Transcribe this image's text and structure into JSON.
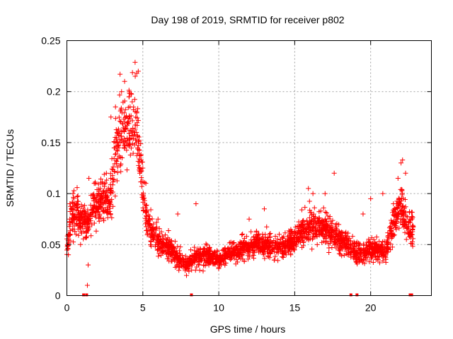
{
  "chart_data": {
    "type": "scatter",
    "title": "Day 198 of 2019, SRMTID for receiver p802",
    "xlabel": "GPS time / hours",
    "ylabel": "SRMTID / TECUs",
    "xlim": [
      0,
      24
    ],
    "ylim": [
      0,
      0.25
    ],
    "xticks": [
      0,
      5,
      10,
      15,
      20
    ],
    "xtick_labels": [
      "0",
      "5",
      "10",
      "15",
      "20"
    ],
    "yticks": [
      0,
      0.05,
      0.1,
      0.15,
      0.2,
      0.25
    ],
    "ytick_labels": [
      "0",
      "0.05",
      "0.1",
      "0.15",
      "0.2",
      "0.25"
    ],
    "grid": true,
    "series_color": "#ff0000",
    "series": [
      {
        "name": "SRMTID",
        "marker": "plus",
        "trend": [
          [
            0.0,
            0.045
          ],
          [
            0.3,
            0.075
          ],
          [
            0.7,
            0.08
          ],
          [
            1.0,
            0.075
          ],
          [
            1.3,
            0.07
          ],
          [
            1.7,
            0.085
          ],
          [
            2.0,
            0.09
          ],
          [
            2.5,
            0.095
          ],
          [
            2.8,
            0.09
          ],
          [
            3.0,
            0.115
          ],
          [
            3.3,
            0.14
          ],
          [
            3.6,
            0.16
          ],
          [
            4.0,
            0.165
          ],
          [
            4.4,
            0.17
          ],
          [
            4.7,
            0.155
          ],
          [
            5.0,
            0.1
          ],
          [
            5.3,
            0.07
          ],
          [
            5.7,
            0.06
          ],
          [
            6.2,
            0.05
          ],
          [
            6.8,
            0.045
          ],
          [
            7.3,
            0.035
          ],
          [
            7.8,
            0.03
          ],
          [
            8.3,
            0.035
          ],
          [
            9.0,
            0.04
          ],
          [
            9.5,
            0.038
          ],
          [
            10.0,
            0.035
          ],
          [
            10.5,
            0.04
          ],
          [
            11.0,
            0.042
          ],
          [
            11.5,
            0.045
          ],
          [
            12.0,
            0.048
          ],
          [
            12.5,
            0.052
          ],
          [
            13.0,
            0.05
          ],
          [
            13.5,
            0.05
          ],
          [
            14.0,
            0.048
          ],
          [
            14.5,
            0.05
          ],
          [
            15.0,
            0.055
          ],
          [
            15.5,
            0.065
          ],
          [
            16.0,
            0.07
          ],
          [
            16.5,
            0.068
          ],
          [
            17.0,
            0.065
          ],
          [
            17.5,
            0.06
          ],
          [
            18.0,
            0.055
          ],
          [
            18.5,
            0.05
          ],
          [
            19.0,
            0.04
          ],
          [
            19.5,
            0.042
          ],
          [
            20.0,
            0.045
          ],
          [
            20.5,
            0.045
          ],
          [
            21.0,
            0.042
          ],
          [
            21.3,
            0.06
          ],
          [
            21.6,
            0.075
          ],
          [
            22.0,
            0.09
          ],
          [
            22.3,
            0.075
          ],
          [
            22.6,
            0.065
          ],
          [
            22.8,
            0.07
          ]
        ],
        "points": [
          [
            0.1,
            0.04
          ],
          [
            0.2,
            0.09
          ],
          [
            0.4,
            0.1
          ],
          [
            0.6,
            0.06
          ],
          [
            0.9,
            0.05
          ],
          [
            1.1,
            0.0
          ],
          [
            1.3,
            0.0
          ],
          [
            1.35,
            0.01
          ],
          [
            1.4,
            0.03
          ],
          [
            1.45,
            0.115
          ],
          [
            1.8,
            0.11
          ],
          [
            2.2,
            0.105
          ],
          [
            2.6,
            0.12
          ],
          [
            2.9,
            0.175
          ],
          [
            3.2,
            0.185
          ],
          [
            3.3,
            0.16
          ],
          [
            3.5,
            0.217
          ],
          [
            3.6,
            0.2
          ],
          [
            3.8,
            0.21
          ],
          [
            4.1,
            0.195
          ],
          [
            4.3,
            0.19
          ],
          [
            4.5,
            0.215
          ],
          [
            4.6,
            0.218
          ],
          [
            4.7,
            0.22
          ],
          [
            4.8,
            0.12
          ],
          [
            5.0,
            0.125
          ],
          [
            5.2,
            0.11
          ],
          [
            6.0,
            0.075
          ],
          [
            7.3,
            0.08
          ],
          [
            8.2,
            0.0
          ],
          [
            8.5,
            0.09
          ],
          [
            12.0,
            0.075
          ],
          [
            13.0,
            0.085
          ],
          [
            15.9,
            0.105
          ],
          [
            16.2,
            0.1
          ],
          [
            17.0,
            0.1
          ],
          [
            17.6,
            0.12
          ],
          [
            18.7,
            0.0
          ],
          [
            19.1,
            0.0
          ],
          [
            19.5,
            0.08
          ],
          [
            20.0,
            0.095
          ],
          [
            20.8,
            0.1
          ],
          [
            21.5,
            0.09
          ],
          [
            21.8,
            0.115
          ],
          [
            22.0,
            0.13
          ],
          [
            22.1,
            0.133
          ],
          [
            22.3,
            0.12
          ],
          [
            22.6,
            0.0
          ],
          [
            22.7,
            0.0
          ]
        ]
      }
    ]
  }
}
